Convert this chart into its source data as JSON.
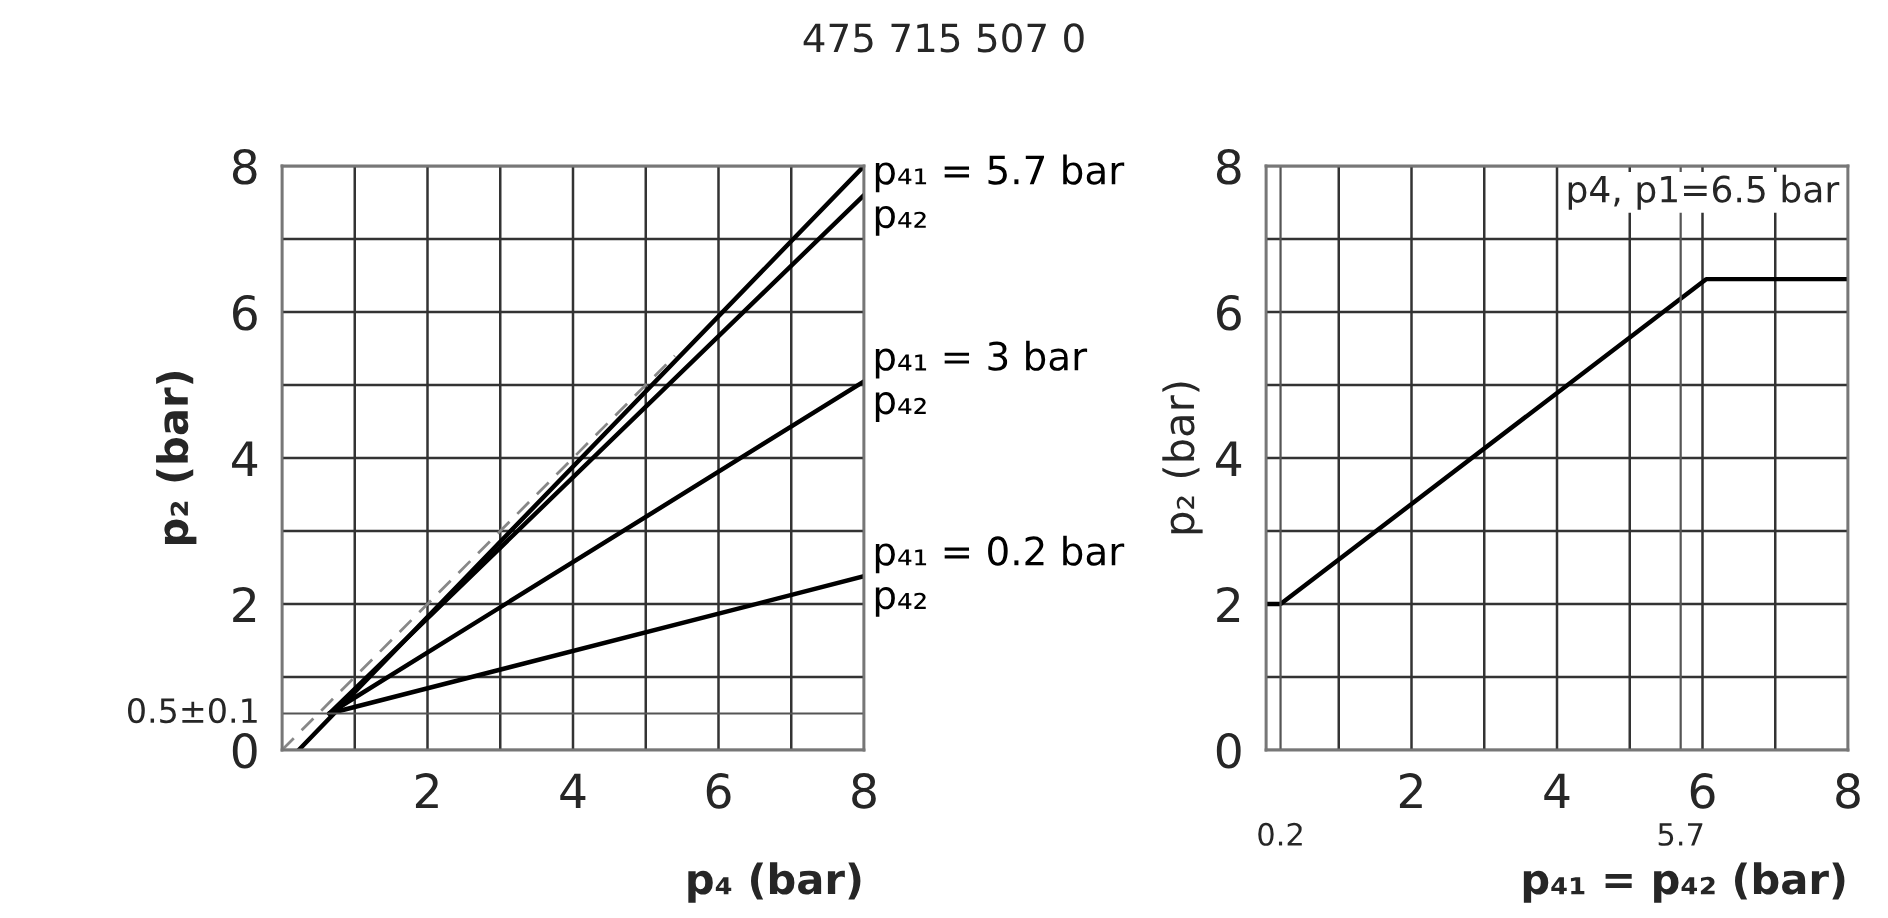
{
  "chart_data": [
    {
      "type": "line",
      "title": "475 715 507 0",
      "xlabel": "p₄ (bar)",
      "ylabel": "p₂ (bar)",
      "xlim": [
        0,
        8
      ],
      "ylim": [
        0,
        8
      ],
      "xticks": [
        {
          "value": 0,
          "label": null
        },
        {
          "value": 1,
          "label": null
        },
        2,
        {
          "value": 3,
          "label": null
        },
        4,
        {
          "value": 5,
          "label": null
        },
        6,
        {
          "value": 7,
          "label": null
        },
        8
      ],
      "yticks": [
        0,
        {
          "value": 1,
          "label": null
        },
        2,
        {
          "value": 3,
          "label": null
        },
        4,
        {
          "value": 5,
          "label": null
        },
        6,
        {
          "value": 7,
          "label": null
        },
        8
      ],
      "grid": true,
      "series": [
        {
          "color": "#888888",
          "line_style": "dashed",
          "x": [
            0,
            5.4
          ],
          "values": [
            0,
            5.4
          ]
        },
        {
          "color": "#000000",
          "line_style": "solid",
          "x": [
            0.23,
            8
          ],
          "values": [
            0,
            8
          ]
        },
        {
          "name": "p₄₁ = 5.7 bar\np₄₂",
          "color": "#000000",
          "line_style": "solid",
          "x": [
            0.65,
            8
          ],
          "values": [
            0.5,
            7.6
          ]
        },
        {
          "name": "p₄₁ = 3 bar\np₄₂",
          "color": "#000000",
          "line_style": "solid",
          "x": [
            0.65,
            8
          ],
          "values": [
            0.5,
            5.05
          ]
        },
        {
          "name": "p₄₁ = 0.2 bar\np₄₂",
          "color": "#000000",
          "line_style": "solid",
          "x": [
            0.65,
            8
          ],
          "values": [
            0.5,
            2.38
          ]
        }
      ],
      "ref_lines": [
        {
          "axis": "y",
          "value": 0.5,
          "label": "0.5±0.1",
          "color": "#555555"
        }
      ]
    },
    {
      "type": "line",
      "xlabel": "p₄₁ = p₄₂ (bar)",
      "ylabel": "p₂ (bar)",
      "xlim": [
        0,
        8
      ],
      "ylim": [
        0,
        8
      ],
      "xticks": [
        {
          "value": 0,
          "label": null
        },
        {
          "value": 1,
          "label": null
        },
        2,
        {
          "value": 3,
          "label": null
        },
        4,
        {
          "value": 5,
          "label": null
        },
        6,
        {
          "value": 7,
          "label": null
        },
        8
      ],
      "yticks": [
        0,
        {
          "value": 1,
          "label": null
        },
        2,
        {
          "value": 3,
          "label": null
        },
        4,
        {
          "value": 5,
          "label": null
        },
        6,
        {
          "value": 7,
          "label": null
        },
        8
      ],
      "grid": true,
      "series": [
        {
          "color": "#000000",
          "line_style": "solid",
          "x": [
            0,
            0.2,
            6.05,
            8
          ],
          "values": [
            2,
            2,
            6.45,
            6.45
          ]
        }
      ],
      "ref_lines": [
        {
          "axis": "x",
          "value": 0.2,
          "label": "0.2",
          "color": "#555555"
        },
        {
          "axis": "x",
          "value": 5.7,
          "label": "5.7",
          "color": "#555555"
        }
      ],
      "annotations": [
        "p4, p1=6.5 bar"
      ]
    }
  ]
}
